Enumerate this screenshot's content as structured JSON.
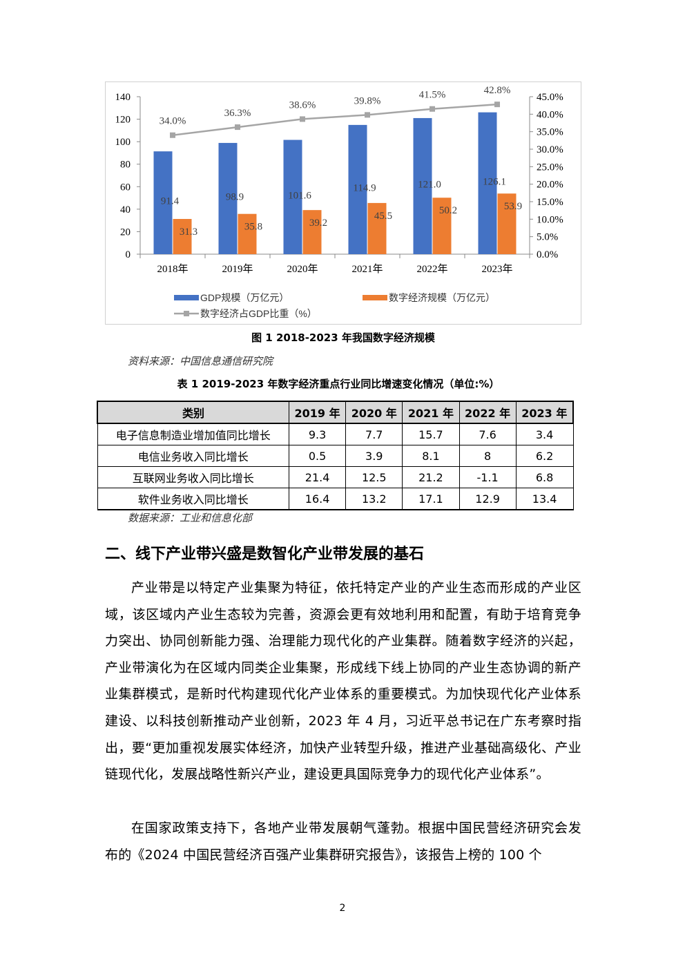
{
  "chart_data": {
    "type": "bar",
    "title": "",
    "categories": [
      "2018年",
      "2019年",
      "2020年",
      "2021年",
      "2022年",
      "2023年"
    ],
    "series": [
      {
        "name": "GDP规模（万亿元）",
        "type": "bar",
        "axis": "left",
        "color": "#4472c4",
        "values": [
          91.4,
          98.9,
          101.6,
          114.9,
          121.0,
          126.1
        ],
        "labels": [
          "91.4",
          "98.9",
          "101.6",
          "114.9",
          "121.0",
          "126.1"
        ]
      },
      {
        "name": "数字经济规模（万亿元）",
        "type": "bar",
        "axis": "left",
        "color": "#ed7d31",
        "values": [
          31.3,
          35.8,
          39.2,
          45.5,
          50.2,
          53.9
        ],
        "labels": [
          "31.3",
          "35.8",
          "39.2",
          "45.5",
          "50.2",
          "53.9"
        ]
      },
      {
        "name": "数字经济占GDP比重（%）",
        "type": "line",
        "axis": "right",
        "color": "#a5a5a5",
        "values": [
          34.0,
          36.3,
          38.6,
          39.8,
          41.5,
          42.8
        ],
        "labels": [
          "34.0%",
          "36.3%",
          "38.6%",
          "39.8%",
          "41.5%",
          "42.8%"
        ]
      }
    ],
    "ylim_left": [
      0,
      140
    ],
    "yticks_left": [
      "0",
      "20",
      "40",
      "60",
      "80",
      "100",
      "120",
      "140"
    ],
    "ylim_right": [
      0,
      45
    ],
    "yticks_right": [
      "0.0%",
      "5.0%",
      "10.0%",
      "15.0%",
      "20.0%",
      "25.0%",
      "30.0%",
      "35.0%",
      "40.0%",
      "45.0%"
    ],
    "grid": false,
    "legend_position": "bottom-left"
  },
  "figure": {
    "caption": "图 1 2018-2023 年我国数字经济规模",
    "source": "资料来源：中国信息通信研究院"
  },
  "table": {
    "caption": "表 1 2019-2023 年数字经济重点行业同比增速变化情况（单位:%）",
    "headers": [
      "类别",
      "2019 年",
      "2020 年",
      "2021 年",
      "2022 年",
      "2023 年"
    ],
    "rows": [
      [
        "电子信息制造业增加值同比增长",
        "9.3",
        "7.7",
        "15.7",
        "7.6",
        "3.4"
      ],
      [
        "电信业务收入同比增长",
        "0.5",
        "3.9",
        "8.1",
        "8",
        "6.2"
      ],
      [
        "互联网业务收入同比增长",
        "21.4",
        "12.5",
        "21.2",
        "-1.1",
        "6.8"
      ],
      [
        "软件业务收入同比增长",
        "16.4",
        "13.2",
        "17.1",
        "12.9",
        "13.4"
      ]
    ],
    "source": "数据来源：工业和信息化部"
  },
  "section": {
    "heading": "二、线下产业带兴盛是数智化产业带发展的基石"
  },
  "paragraphs": [
    "产业带是以特定产业集聚为特征，依托特定产业的产业生态而形成的产业区域，该区域内产业生态较为完善，资源会更有效地利用和配置，有助于培育竞争力突出、协同创新能力强、治理能力现代化的产业集群。随着数字经济的兴起，产业带演化为在区域内同类企业集聚，形成线下线上协同的产业生态协调的新产业集群模式，是新时代构建现代化产业体系的重要模式。为加快现代化产业体系建设、以科技创新推动产业创新，2023 年 4 月，习近平总书记在广东考察时指出，要“更加重视发展实体经济，加快产业转型升级，推进产业基础高级化、产业链现代化，发展战略性新兴产业，建设更具国际竞争力的现代化产业体系”。",
    "在国家政策支持下，各地产业带发展朝气蓬勃。根据中国民营经济研究会发布的《2024 中国民营经济百强产业集群研究报告》，该报告上榜的 100 个"
  ],
  "page": {
    "number": "2"
  }
}
